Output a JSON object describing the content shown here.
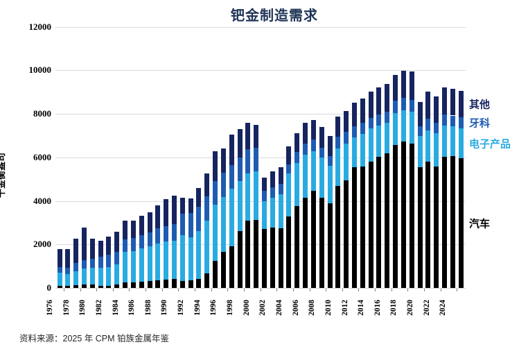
{
  "title": "钯金制造需求",
  "source": "资料来源：2025 年 CPM 铂族金属年鉴",
  "y_axis": {
    "label": "千金衡盎司",
    "ticks": [
      0,
      2000,
      4000,
      6000,
      8000,
      10000,
      12000
    ]
  },
  "colors": {
    "auto": "#000000",
    "electronics": "#29ABE2",
    "dental": "#1E5CB3",
    "other": "#16245F",
    "title": "#1F3356",
    "gridline": "#D9D9D9"
  },
  "chart_data": {
    "type": "bar",
    "stacked": true,
    "title": "钯金制造需求",
    "ylabel": "千金衡盎司",
    "xlabel": "",
    "ylim": [
      0,
      12000
    ],
    "grid": "horizontal",
    "legend_position": "right-of-last-bar",
    "x": [
      1976,
      1977,
      1978,
      1979,
      1980,
      1981,
      1982,
      1983,
      1984,
      1985,
      1986,
      1987,
      1988,
      1989,
      1990,
      1991,
      1992,
      1993,
      1994,
      1995,
      1996,
      1997,
      1998,
      1999,
      2000,
      2001,
      2002,
      2003,
      2004,
      2005,
      2006,
      2007,
      2008,
      2009,
      2010,
      2011,
      2012,
      2013,
      2014,
      2015,
      2016,
      2017,
      2018,
      2019,
      2020,
      2021,
      2022,
      2023,
      2024,
      2025
    ],
    "x_tick_labels": [
      "1976",
      "1978",
      "1980",
      "1982",
      "1984",
      "1986",
      "1988",
      "1990",
      "1992",
      "1994",
      "1996",
      "1998",
      "2000",
      "2002",
      "2004",
      "2006",
      "2008",
      "2010",
      "2012",
      "2014",
      "2016",
      "2018",
      "2020",
      "2022",
      "2024"
    ],
    "series": [
      {
        "name": "汽车",
        "color": "#000000",
        "values": [
          105,
          95,
          125,
          160,
          160,
          85,
          105,
          160,
          245,
          265,
          285,
          320,
          350,
          370,
          425,
          320,
          340,
          425,
          660,
          1255,
          1650,
          1915,
          2605,
          3085,
          3135,
          2710,
          2765,
          2750,
          3295,
          3775,
          4145,
          4465,
          4145,
          3880,
          4675,
          4945,
          5530,
          5580,
          5815,
          6030,
          6185,
          6570,
          6730,
          6645,
          5530,
          5795,
          5580,
          6030,
          6060,
          5950
        ]
      },
      {
        "name": "电子产品",
        "color": "#29ABE2",
        "values": [
          590,
          545,
          650,
          725,
          765,
          840,
          850,
          935,
          1405,
          1435,
          1520,
          1595,
          1700,
          1755,
          1735,
          2100,
          2000,
          2180,
          2445,
          2570,
          2520,
          2635,
          2305,
          2180,
          2230,
          1275,
          1380,
          1555,
          1965,
          1965,
          1965,
          1810,
          1840,
          1720,
          1735,
          1700,
          1400,
          1490,
          1500,
          1435,
          1385,
          1455,
          1435,
          1455,
          1465,
          1455,
          1520,
          1415,
          1360,
          1385
        ]
      },
      {
        "name": "牙科",
        "color": "#1E5CB3",
        "values": [
          265,
          295,
          365,
          390,
          425,
          510,
          565,
          555,
          585,
          585,
          605,
          635,
          680,
          720,
          760,
          1000,
          1115,
          1115,
          1095,
          1085,
          1125,
          1085,
          1095,
          1095,
          1065,
          480,
          480,
          480,
          425,
          500,
          530,
          530,
          465,
          455,
          530,
          530,
          490,
          530,
          500,
          490,
          510,
          565,
          555,
          530,
          445,
          530,
          500,
          510,
          500,
          500
        ]
      },
      {
        "name": "其他",
        "color": "#16245F",
        "values": [
          840,
          845,
          1120,
          1505,
          900,
          745,
          850,
          935,
          865,
          815,
          890,
          940,
          1070,
          1225,
          1310,
          730,
          670,
          870,
          1060,
          1380,
          1105,
          1415,
          1295,
          1240,
          1070,
          615,
          725,
          745,
          830,
          880,
          935,
          905,
          960,
          925,
          925,
          955,
          1080,
          1115,
          1200,
          1245,
          1300,
          1190,
          1270,
          1300,
          1115,
          1235,
          1200,
          1245,
          1230,
          1215
        ]
      }
    ]
  }
}
